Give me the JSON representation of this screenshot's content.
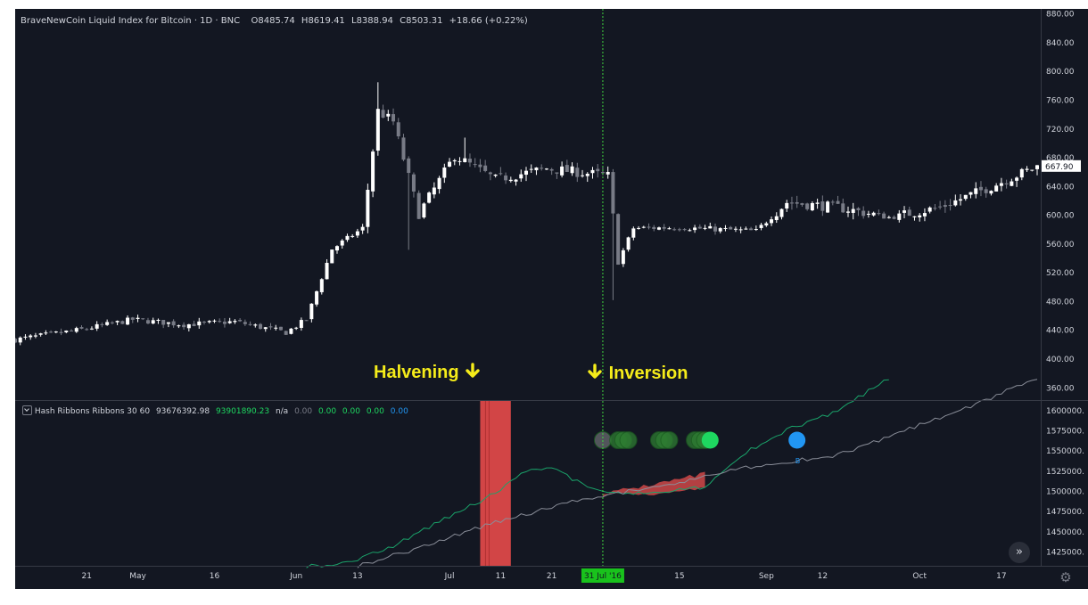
{
  "header": {
    "symbol": "BraveNewCoin Liquid Index for Bitcoin · 1D · BNC",
    "o_label": "O",
    "o_value": "8485.74",
    "h_label": "H",
    "h_value": "8619.41",
    "l_label": "L",
    "l_value": "8388.94",
    "c_label": "C",
    "c_value": "8503.31",
    "change": "+18.66 (+0.22%)"
  },
  "indicator_header": {
    "name": "Hash Ribbons Ribbons 30 60",
    "v1": "93676392.98",
    "v2": "93901890.23",
    "v3": "n/a",
    "v4": "0.00",
    "v5": "0.00",
    "v6": "0.00",
    "v7": "0.00",
    "v8": "0.00"
  },
  "annotations": {
    "halvening": "Halvening",
    "inversion": "Inversion"
  },
  "colors": {
    "background": "#131722",
    "up_candle": "#ffffff",
    "down_candle": "#787b86",
    "fast_ma": "#1aa36a",
    "slow_ma": "#8a8e99",
    "halvening_band": "#e84a4a",
    "inversion_fill": "#d04848",
    "annotation": "#f5ec1a",
    "crosshair": "#3fd43f",
    "buy_dot": "#2196f3",
    "signal_dot_bright": "#1ed760",
    "signal_dot_dim": "#2e7d32"
  },
  "icons": {
    "scroll": "double-chevron-right-icon",
    "settings": "gear-icon",
    "collapse": "chevron-down-icon"
  },
  "chart_data": [
    {
      "type": "candlestick",
      "title": "BraveNewCoin Liquid Index for Bitcoin",
      "interval": "1D",
      "x_axis_ticks": [
        "21",
        "May",
        "16",
        "Jun",
        "13",
        "Jul",
        "11",
        "21",
        "31 Jul '16",
        "15",
        "Sep",
        "12",
        "Oct",
        "17"
      ],
      "crosshair_date": "31 Jul '16",
      "y_axis_ticks": [
        "880.00",
        "840.00",
        "800.00",
        "760.00",
        "720.00",
        "680.00",
        "640.00",
        "600.00",
        "560.00",
        "520.00",
        "480.00",
        "440.00",
        "400.00",
        "360.00"
      ],
      "last_price": "667.90",
      "ylim": [
        343,
        887
      ],
      "x_range": [
        "2016-04-07",
        "2016-10-24"
      ],
      "close_path": [
        [
          "2016-04-07",
          427
        ],
        [
          "2016-04-20",
          441
        ],
        [
          "2016-04-30",
          455
        ],
        [
          "2016-05-10",
          448
        ],
        [
          "2016-05-20",
          452
        ],
        [
          "2016-05-30",
          437
        ],
        [
          "2016-06-03",
          455
        ],
        [
          "2016-06-08",
          553
        ],
        [
          "2016-06-14",
          582
        ],
        [
          "2016-06-17",
          745
        ],
        [
          "2016-06-20",
          730
        ],
        [
          "2016-06-25",
          602
        ],
        [
          "2016-07-02",
          683
        ],
        [
          "2016-07-10",
          650
        ],
        [
          "2016-07-20",
          665
        ],
        [
          "2016-08-01",
          655
        ],
        [
          "2016-08-02",
          600
        ],
        [
          "2016-08-03",
          535
        ],
        [
          "2016-08-06",
          582
        ],
        [
          "2016-08-15",
          583
        ],
        [
          "2016-08-30",
          578
        ],
        [
          "2016-09-05",
          618
        ],
        [
          "2016-09-15",
          611
        ],
        [
          "2016-09-25",
          597
        ],
        [
          "2016-10-05",
          611
        ],
        [
          "2016-10-15",
          640
        ],
        [
          "2016-10-24",
          667.9
        ]
      ],
      "extremes": [
        {
          "x": "2016-06-17",
          "high": 785
        },
        {
          "x": "2016-06-23",
          "low": 552
        },
        {
          "x": "2016-08-02",
          "low": 482
        },
        {
          "x": "2016-07-04",
          "high": 708
        }
      ]
    },
    {
      "type": "line",
      "title": "Hash Ribbons Ribbons 30 60",
      "y_axis_ticks": [
        "1600000.",
        "1575000.",
        "1550000.",
        "1525000.",
        "1500000.",
        "1475000.",
        "1450000.",
        "1425000."
      ],
      "ylim": [
        1408000,
        1612000
      ],
      "series": [
        {
          "name": "30",
          "points": [
            [
              "2016-06-03",
              1408000
            ],
            [
              "2016-06-10",
              1410000
            ],
            [
              "2016-06-20",
              1432000
            ],
            [
              "2016-06-30",
              1466000
            ],
            [
              "2016-07-10",
              1498000
            ],
            [
              "2016-07-16",
              1525000
            ],
            [
              "2016-07-21",
              1530000
            ],
            [
              "2016-07-26",
              1512000
            ],
            [
              "2016-07-31",
              1500000
            ],
            [
              "2016-08-10",
              1498000
            ],
            [
              "2016-08-20",
              1506000
            ],
            [
              "2016-08-27",
              1545000
            ],
            [
              "2016-09-05",
              1576000
            ],
            [
              "2016-09-15",
              1600000
            ],
            [
              "2016-09-25",
              1640000
            ]
          ]
        },
        {
          "name": "60",
          "points": [
            [
              "2016-06-13",
              1408000
            ],
            [
              "2016-06-25",
              1430000
            ],
            [
              "2016-07-10",
              1462000
            ],
            [
              "2016-07-25",
              1487000
            ],
            [
              "2016-07-31",
              1494000
            ],
            [
              "2016-08-15",
              1512000
            ],
            [
              "2016-08-28",
              1530000
            ],
            [
              "2016-09-15",
              1545000
            ],
            [
              "2016-09-28",
              1575000
            ],
            [
              "2016-10-10",
              1603000
            ],
            [
              "2016-10-24",
              1640000
            ]
          ]
        }
      ],
      "halvening_band": [
        "2016-07-07",
        "2016-07-13"
      ],
      "inversion_period": [
        "2016-07-31",
        "2016-08-20"
      ],
      "signals": [
        {
          "x": "2016-07-31",
          "kind": "dim"
        },
        {
          "x": "2016-08-03",
          "kind": "dim"
        },
        {
          "x": "2016-08-04",
          "kind": "dim"
        },
        {
          "x": "2016-08-05",
          "kind": "dim"
        },
        {
          "x": "2016-08-11",
          "kind": "dim"
        },
        {
          "x": "2016-08-12",
          "kind": "dim"
        },
        {
          "x": "2016-08-13",
          "kind": "dim"
        },
        {
          "x": "2016-08-18",
          "kind": "dim"
        },
        {
          "x": "2016-08-19",
          "kind": "dim"
        },
        {
          "x": "2016-08-20",
          "kind": "dim"
        },
        {
          "x": "2016-08-21",
          "kind": "bright"
        },
        {
          "x": "2016-09-07",
          "kind": "buy",
          "label": "B"
        }
      ]
    }
  ]
}
